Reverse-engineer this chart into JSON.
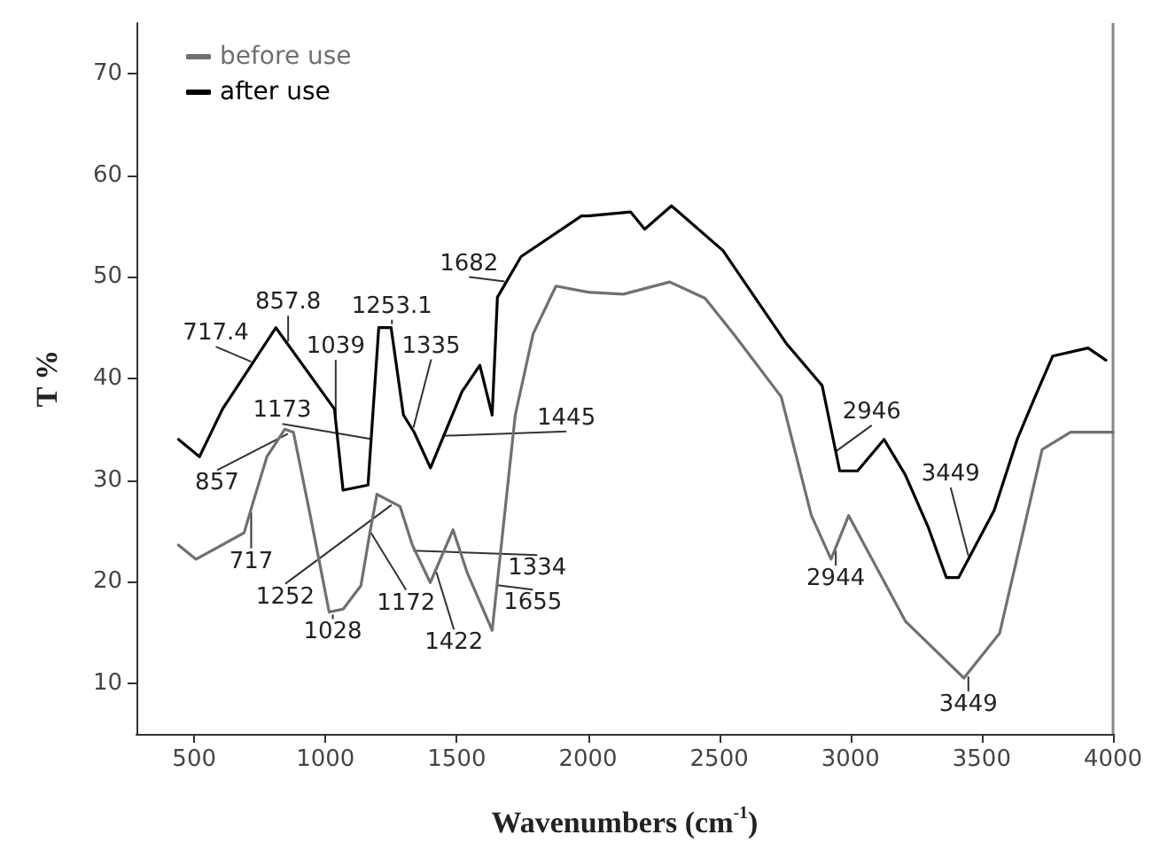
{
  "chart_data": {
    "type": "line",
    "xlabel": "Wavenumbers (cm$^{-1}$)",
    "ylabel": "T %",
    "xlim": [
      280,
      4000
    ],
    "xticks": [
      500,
      1000,
      1500,
      2000,
      2500,
      3000,
      3500,
      4000
    ],
    "ylim": [
      5,
      75
    ],
    "yticks": [
      10,
      20,
      30,
      40,
      50,
      60,
      70
    ],
    "grid": false,
    "legend": "top left",
    "marker": "none",
    "line_style": "solid",
    "series": [
      {
        "name": "before use",
        "color": "#707070",
        "x": [
          440,
          507,
          690,
          723,
          777,
          845,
          878,
          946,
          1014,
          1068,
          1135,
          1169,
          1196,
          1284,
          1331,
          1399,
          1486,
          1541,
          1635,
          1723,
          1791,
          1878,
          2000,
          2135,
          2311,
          2446,
          2554,
          2736,
          2851,
          2926,
          2993,
          3209,
          3432,
          3568,
          3730,
          3838,
          4000
        ],
        "values": [
          23.6,
          22.2,
          24.8,
          27.7,
          32.3,
          35,
          34.7,
          26,
          17,
          17.3,
          19.6,
          24.8,
          28.6,
          27.4,
          23.6,
          19.9,
          25.1,
          20.8,
          15.2,
          36.4,
          44.4,
          49.1,
          48.5,
          48.3,
          49.5,
          47.9,
          44.4,
          38.2,
          26.5,
          22.2,
          26.5,
          16.1,
          10.5,
          14.9,
          33,
          34.7,
          34.7
        ]
      },
      {
        "name": "after use",
        "color": "#000000",
        "x": [
          440,
          520,
          608,
          811,
          1034,
          1067,
          1162,
          1203,
          1250,
          1297,
          1338,
          1400,
          1520,
          1588,
          1635,
          1655,
          1745,
          1975,
          2000,
          2162,
          2216,
          2318,
          2514,
          2757,
          2892,
          2959,
          3027,
          3128,
          3209,
          3297,
          3365,
          3412,
          3547,
          3635,
          3703,
          3770,
          3905,
          3973
        ],
        "values": [
          34,
          32.3,
          37,
          45,
          37,
          29,
          29.5,
          45,
          45,
          36.4,
          34.7,
          31.2,
          38.7,
          41.3,
          36.4,
          48,
          52,
          56,
          56,
          56.4,
          54.7,
          57,
          52.6,
          43.4,
          39.3,
          30.9,
          30.9,
          34,
          30.5,
          25.3,
          20.4,
          20.4,
          27,
          34,
          38.2,
          42.2,
          43,
          41.8
        ]
      }
    ],
    "annotations": [
      {
        "text": "717.4",
        "x": 717.4,
        "y": 41.3
      },
      {
        "text": "857.8",
        "x": 857.8,
        "y": 43.3
      },
      {
        "text": "1039",
        "x": 1039,
        "y": 35.8
      },
      {
        "text": "1253.1",
        "x": 1253.1,
        "y": 45
      },
      {
        "text": "1335",
        "x": 1335,
        "y": 34.8
      },
      {
        "text": "1445",
        "x": 1445,
        "y": 34
      },
      {
        "text": "1682",
        "x": 1682,
        "y": 49.2
      },
      {
        "text": "1173",
        "x": 1173,
        "y": 33.7
      },
      {
        "text": "2946",
        "x": 2946,
        "y": 32.5
      },
      {
        "text": "3449",
        "x": 3449,
        "y": 22.2
      },
      {
        "text": "857",
        "x": 857,
        "y": 34.9
      },
      {
        "text": "717",
        "x": 717,
        "y": 27.2
      },
      {
        "text": "1028",
        "x": 1028,
        "y": 17.1
      },
      {
        "text": "1172",
        "x": 1172,
        "y": 25.2
      },
      {
        "text": "1252",
        "x": 1252,
        "y": 27.9
      },
      {
        "text": "1334",
        "x": 1334,
        "y": 23.4
      },
      {
        "text": "1422",
        "x": 1422,
        "y": 21.3
      },
      {
        "text": "1655",
        "x": 1655,
        "y": 20
      },
      {
        "text": "2944",
        "x": 2944,
        "y": 23.4
      },
      {
        "text": "3449",
        "x": 3449,
        "y": 11
      }
    ]
  }
}
